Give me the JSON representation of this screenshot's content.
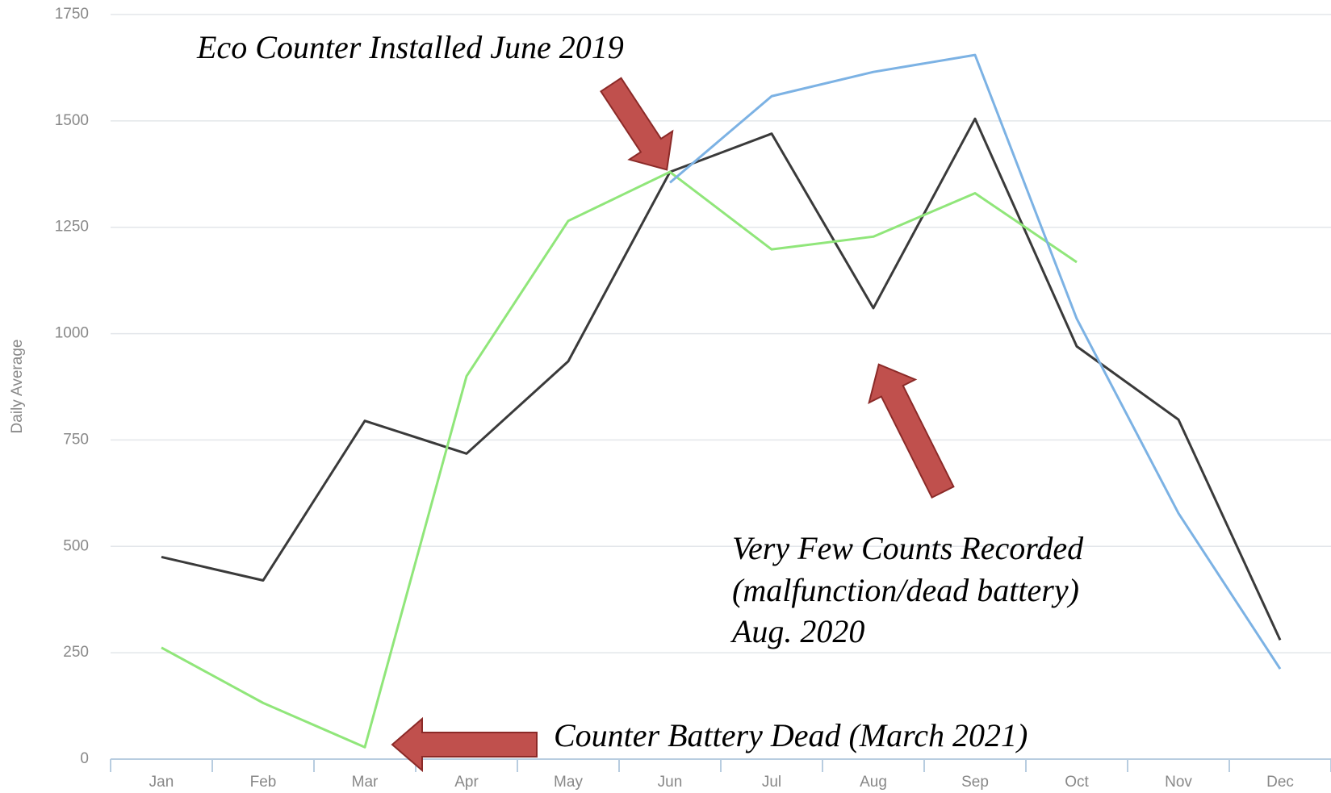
{
  "chart_data": {
    "type": "line",
    "y_label": "Daily Average",
    "categories": [
      "Jan",
      "Feb",
      "Mar",
      "Apr",
      "May",
      "Jun",
      "Jul",
      "Aug",
      "Sep",
      "Oct",
      "Nov",
      "Dec"
    ],
    "series": [
      {
        "color": "#3a3a3a",
        "values": [
          475,
          420,
          795,
          718,
          935,
          1380,
          1470,
          1060,
          1505,
          970,
          798,
          280
        ]
      },
      {
        "color": "#90e67a",
        "values": [
          262,
          132,
          28,
          900,
          1265,
          1380,
          1198,
          1228,
          1330,
          1168,
          null,
          null
        ]
      },
      {
        "color": "#7cb2e4",
        "values": [
          null,
          null,
          null,
          null,
          null,
          1355,
          1558,
          1615,
          1655,
          1035,
          578,
          212
        ]
      }
    ],
    "ylim": [
      0,
      1750
    ],
    "yticks": [
      0,
      250,
      500,
      750,
      1000,
      1250,
      1500,
      1750
    ],
    "grid": true,
    "annotations": [
      "Eco Counter Installed June 2019",
      "Very Few Counts Recorded",
      "(malfunction/dead battery)",
      "Aug. 2020",
      "Counter Battery Dead (March 2021)"
    ]
  }
}
